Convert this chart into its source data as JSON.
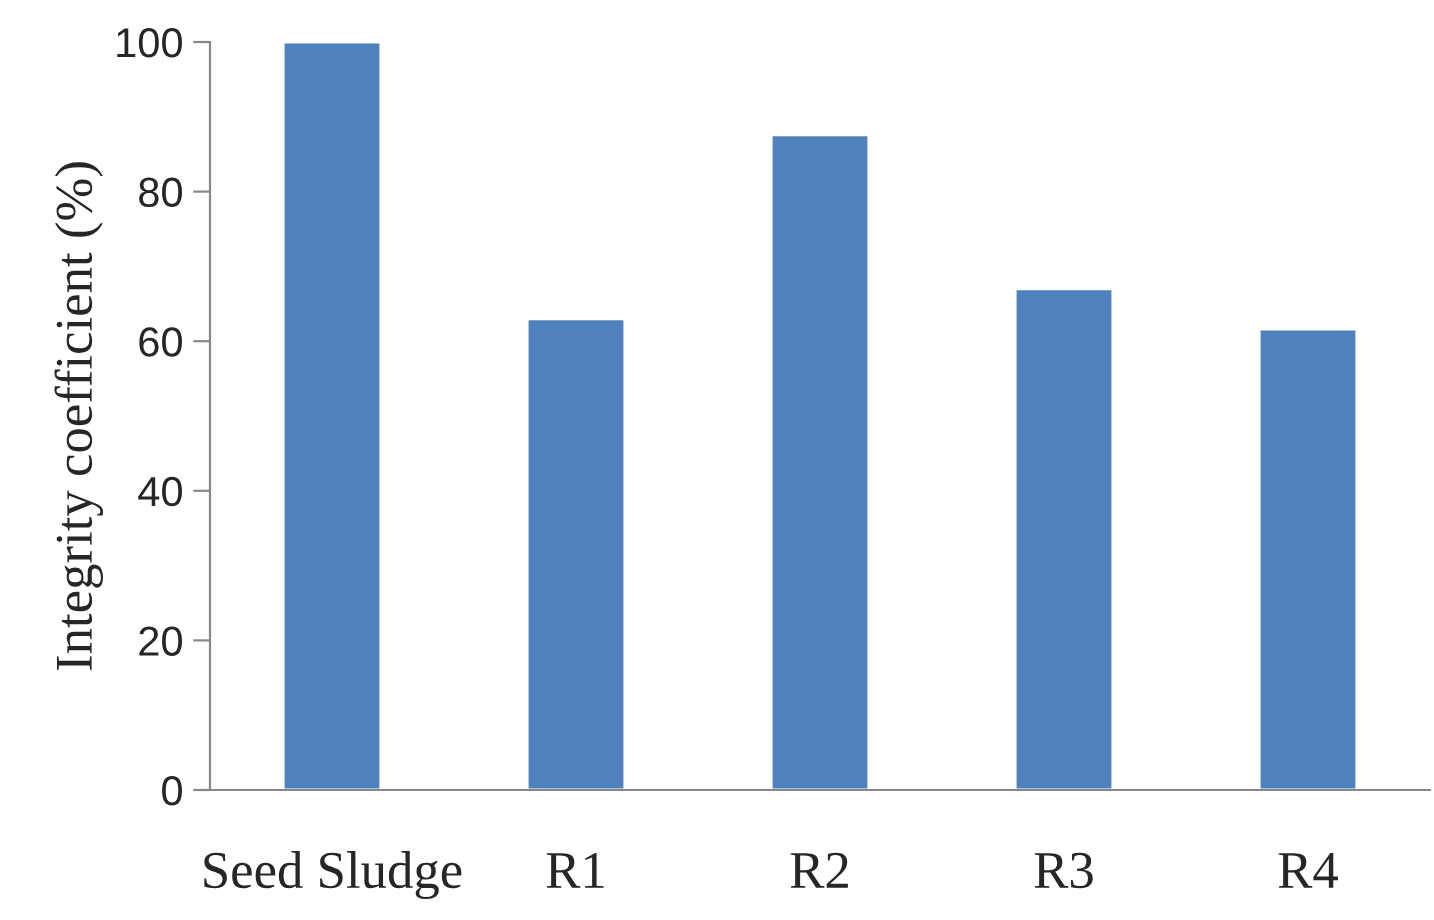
{
  "chart_data": {
    "type": "bar",
    "ylabel": "Integrity coefficient (%)",
    "categories": [
      "Seed Sludge",
      "R1",
      "R2",
      "R3",
      "R4"
    ],
    "values": [
      100,
      63,
      87.6,
      67,
      61.6
    ],
    "color": "#4f81bd",
    "ylim": [
      0,
      100
    ],
    "yticks": [
      0,
      20,
      40,
      60,
      80,
      100
    ],
    "grid": false,
    "legend": false
  }
}
